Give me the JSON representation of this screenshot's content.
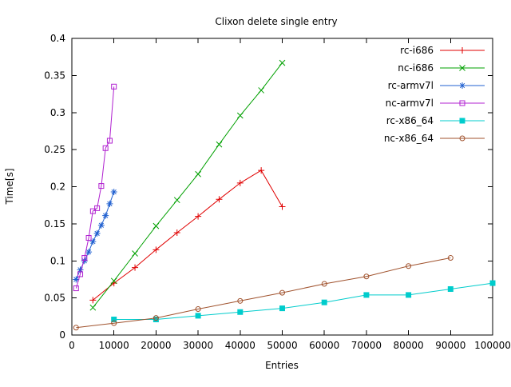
{
  "chart": {
    "title": "Clixon delete single entry",
    "xlabel": "Entries",
    "ylabel": "Time[s]"
  },
  "chart_data": {
    "type": "line",
    "title": "Clixon delete single entry",
    "xlabel": "Entries",
    "ylabel": "Time[s]",
    "xlim": [
      0,
      100000
    ],
    "ylim": [
      0,
      0.4
    ],
    "xticks": [
      0,
      10000,
      20000,
      30000,
      40000,
      50000,
      60000,
      70000,
      80000,
      90000,
      100000
    ],
    "yticks": [
      0,
      0.05,
      0.1,
      0.15,
      0.2,
      0.25,
      0.3,
      0.35,
      0.4
    ],
    "grid": false,
    "legend_position": "inside-top-right",
    "border_color": "#000000",
    "series": [
      {
        "name": "rc-i686",
        "color": "#e00000",
        "marker": "plus",
        "x": [
          5000,
          10000,
          15000,
          20000,
          25000,
          30000,
          35000,
          40000,
          45000,
          50000
        ],
        "y": [
          0.047,
          0.07,
          0.091,
          0.115,
          0.138,
          0.16,
          0.183,
          0.205,
          0.222,
          0.173
        ]
      },
      {
        "name": "nc-i686",
        "color": "#00a000",
        "marker": "cross",
        "x": [
          5000,
          10000,
          15000,
          20000,
          25000,
          30000,
          35000,
          40000,
          45000,
          50000
        ],
        "y": [
          0.037,
          0.073,
          0.11,
          0.147,
          0.182,
          0.217,
          0.257,
          0.296,
          0.33,
          0.367
        ]
      },
      {
        "name": "rc-armv7l",
        "color": "#2060d0",
        "marker": "asterisk",
        "x": [
          1000,
          2000,
          3000,
          4000,
          5000,
          6000,
          7000,
          8000,
          9000,
          10000
        ],
        "y": [
          0.075,
          0.088,
          0.1,
          0.112,
          0.126,
          0.137,
          0.148,
          0.161,
          0.177,
          0.193
        ]
      },
      {
        "name": "nc-armv7l",
        "color": "#b020d0",
        "marker": "square-open",
        "x": [
          1000,
          2000,
          3000,
          4000,
          5000,
          6000,
          7000,
          8000,
          9000,
          10000
        ],
        "y": [
          0.063,
          0.082,
          0.104,
          0.131,
          0.167,
          0.171,
          0.201,
          0.252,
          0.262,
          0.335
        ]
      },
      {
        "name": "rc-x86_64",
        "color": "#00cccc",
        "marker": "square-filled",
        "x": [
          10000,
          20000,
          30000,
          40000,
          50000,
          60000,
          70000,
          80000,
          90000,
          100000
        ],
        "y": [
          0.021,
          0.021,
          0.026,
          0.031,
          0.036,
          0.044,
          0.054,
          0.054,
          0.062,
          0.07
        ]
      },
      {
        "name": "nc-x86_64",
        "color": "#a0522d",
        "marker": "circle-open",
        "x": [
          1000,
          10000,
          20000,
          30000,
          40000,
          50000,
          60000,
          70000,
          80000,
          90000
        ],
        "y": [
          0.01,
          0.016,
          0.023,
          0.035,
          0.046,
          0.057,
          0.069,
          0.079,
          0.093,
          0.104
        ]
      }
    ]
  }
}
